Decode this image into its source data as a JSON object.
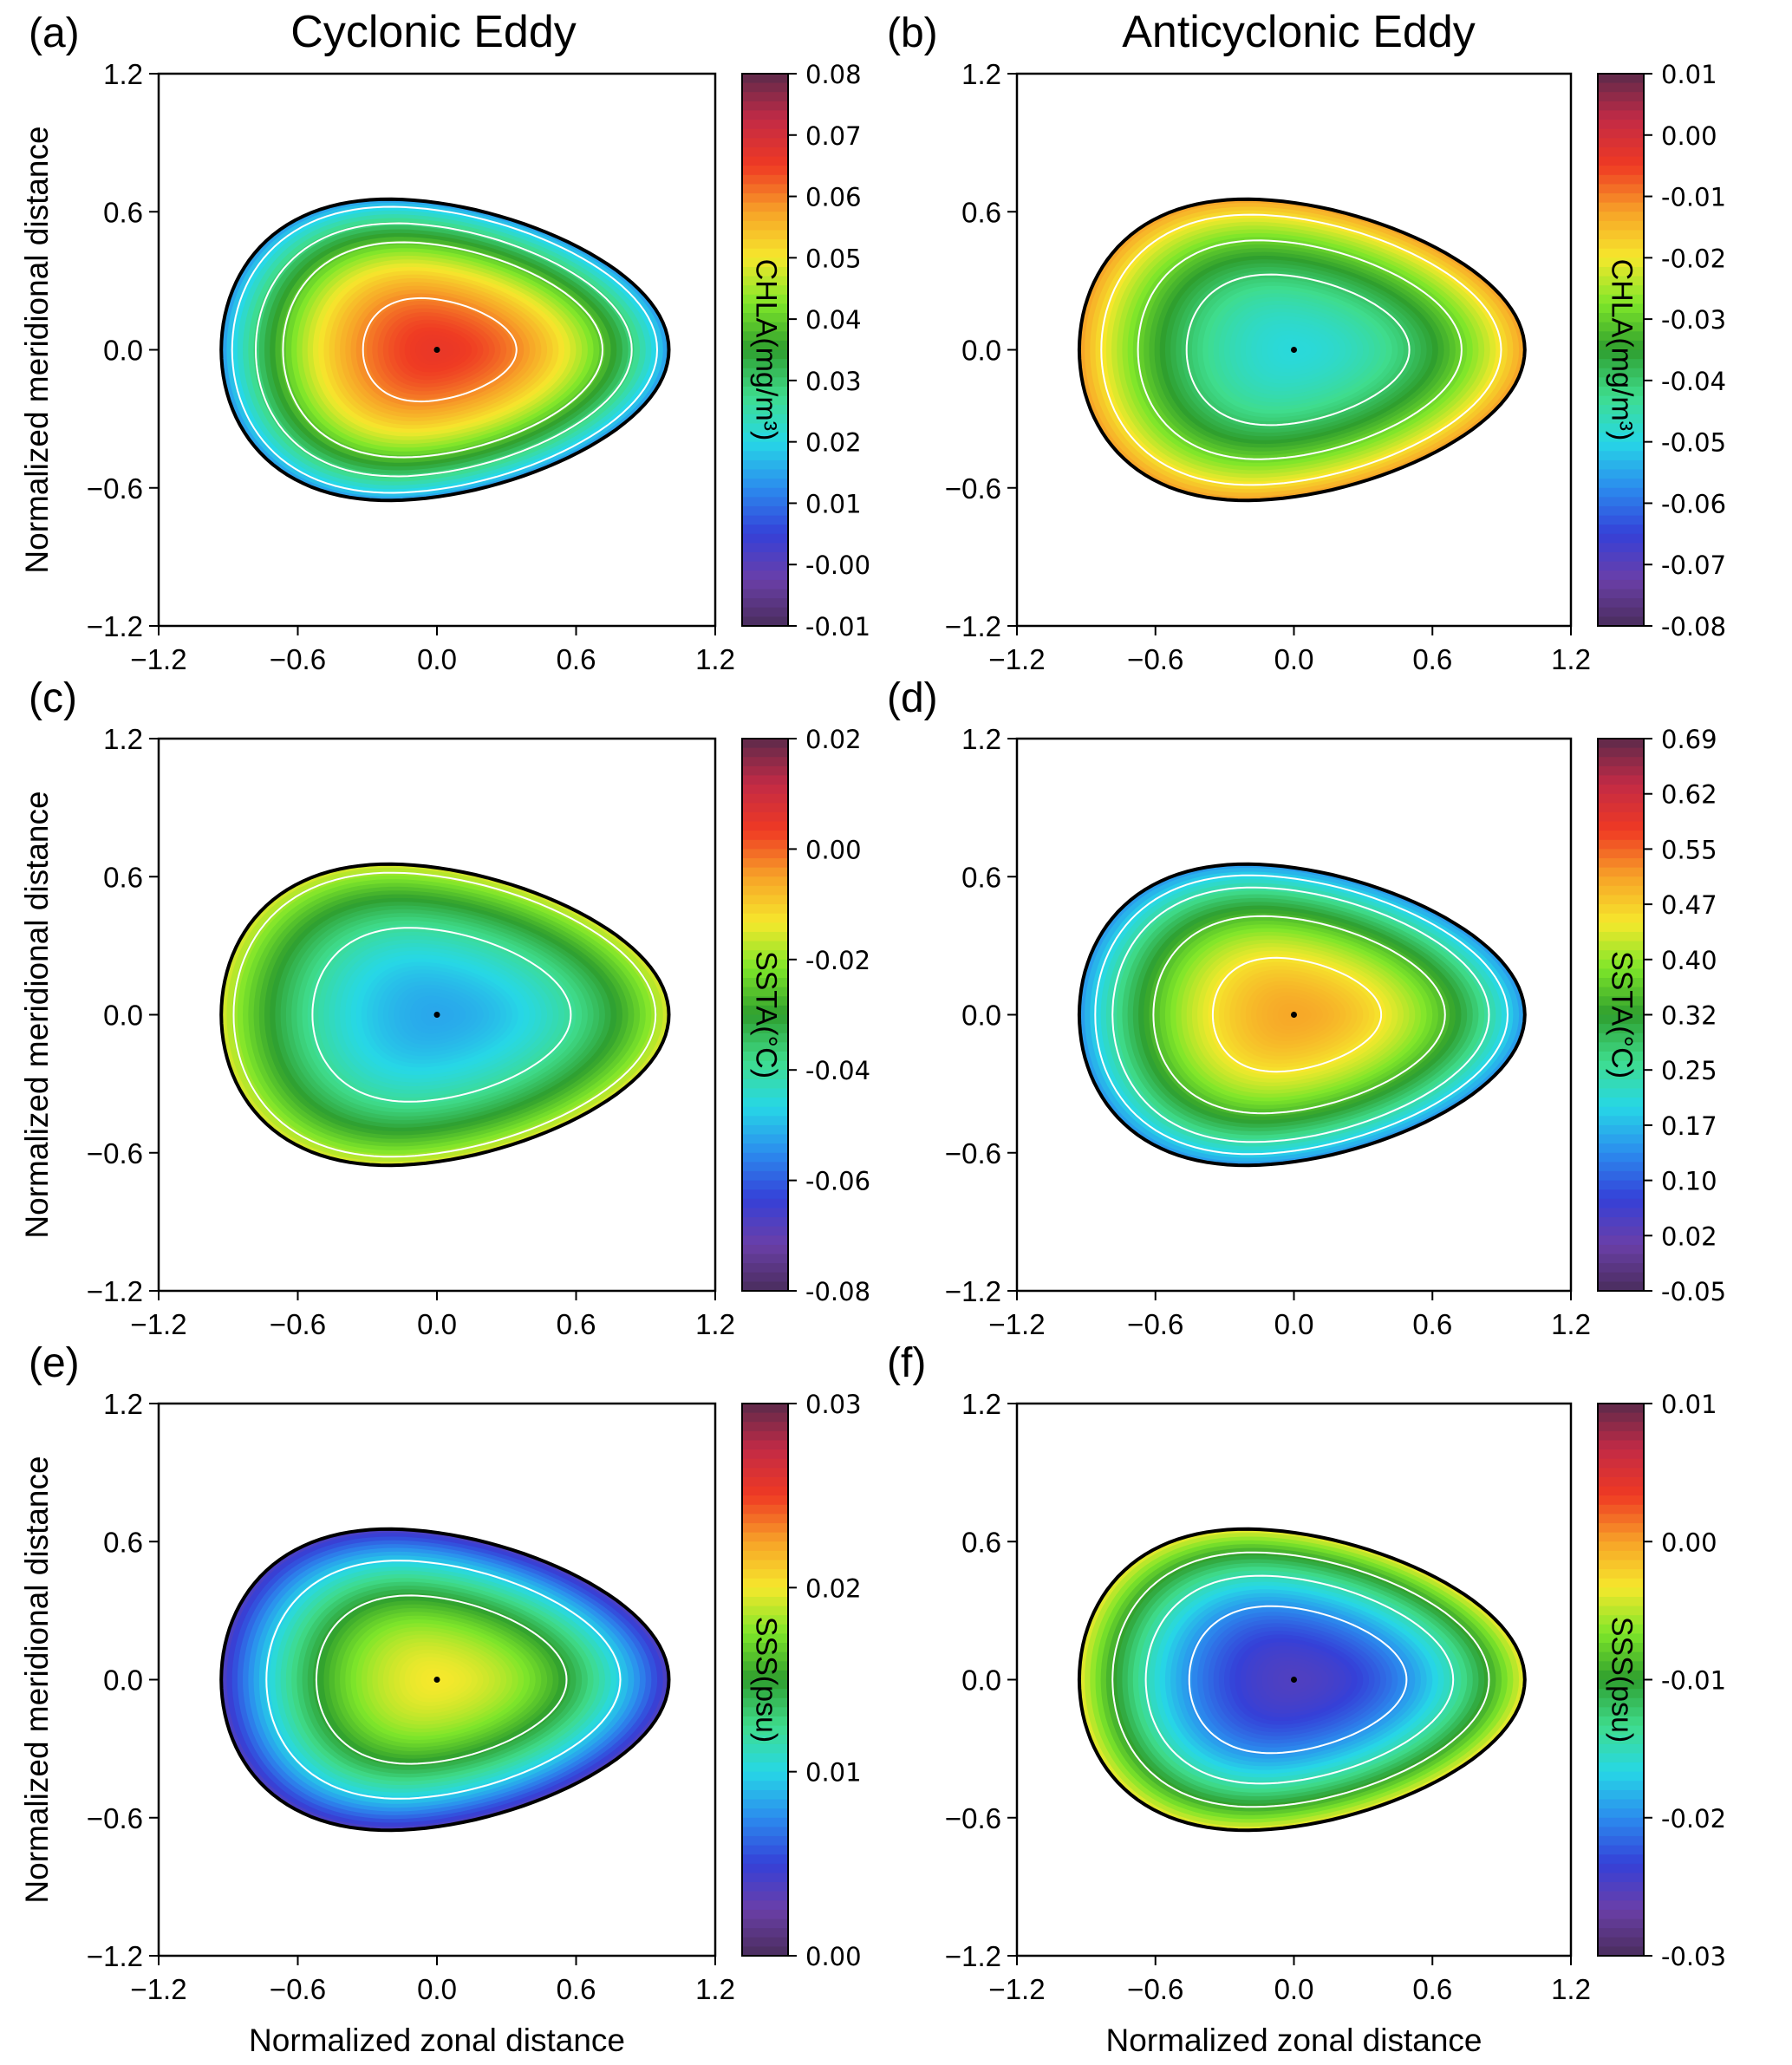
{
  "column_titles": [
    "Cyclonic Eddy",
    "Anticyclonic Eddy"
  ],
  "colors": {
    "colormap": [
      "#4a2d5c",
      "#6a3fa8",
      "#3540d8",
      "#2b8cee",
      "#27d8e6",
      "#3fdc8c",
      "#2e9e2e",
      "#7ee62a",
      "#f6e82c",
      "#f7a228",
      "#ef3a23",
      "#c32a45",
      "#5c2a4a"
    ],
    "contour": "#ffffff",
    "boundary": "#000000"
  },
  "chart_data": [
    {
      "type": "heatmap",
      "panel_label": "(a)",
      "column": "Cyclonic Eddy",
      "xlabel": "",
      "ylabel": "Normalized meridional distance",
      "colorbar_label": "CHLA(mg/m³)",
      "x_ticks": [
        "−1.2",
        "−0.6",
        "0.0",
        "0.6",
        "1.2"
      ],
      "y_ticks": [
        "1.2",
        "0.6",
        "0.0",
        "−0.6",
        "−1.2"
      ],
      "xlim": [
        -1.2,
        1.2
      ],
      "ylim": [
        -1.2,
        1.2
      ],
      "colorbar_ticks": [
        "0.08",
        "0.07",
        "0.06",
        "0.05",
        "0.04",
        "0.03",
        "0.02",
        "0.01",
        "-0.00",
        "-0.01"
      ],
      "colorbar_range": [
        -0.01,
        0.08
      ],
      "center_value": 0.066,
      "edge_value": 0.015,
      "contour_levels": [
        0.06,
        0.04,
        0.03,
        0.02
      ],
      "eddy_center": [
        0.0,
        0.0
      ]
    },
    {
      "type": "heatmap",
      "panel_label": "(b)",
      "column": "Anticyclonic Eddy",
      "xlabel": "",
      "ylabel": "",
      "colorbar_label": "CHLA(mg/m³)",
      "x_ticks": [
        "−1.2",
        "−0.6",
        "0.0",
        "0.6",
        "1.2"
      ],
      "y_ticks": [
        "1.2",
        "0.6",
        "0.0",
        "−0.6",
        "−1.2"
      ],
      "xlim": [
        -1.2,
        1.2
      ],
      "ylim": [
        -1.2,
        1.2
      ],
      "colorbar_ticks": [
        "0.01",
        "0.00",
        "-0.01",
        "-0.02",
        "-0.03",
        "-0.04",
        "-0.05",
        "-0.06",
        "-0.07",
        "-0.08"
      ],
      "colorbar_range": [
        -0.08,
        0.01
      ],
      "center_value": -0.049,
      "edge_value": -0.013,
      "contour_levels": [
        -0.02,
        -0.03,
        -0.04
      ],
      "eddy_center": [
        0.0,
        0.0
      ]
    },
    {
      "type": "heatmap",
      "panel_label": "(c)",
      "column": "Cyclonic Eddy",
      "xlabel": "",
      "ylabel": "Normalized meridional distance",
      "colorbar_label": "SSTA(°C)",
      "x_ticks": [
        "−1.2",
        "−0.6",
        "0.0",
        "0.6",
        "1.2"
      ],
      "y_ticks": [
        "1.2",
        "0.6",
        "0.0",
        "−0.6",
        "−1.2"
      ],
      "xlim": [
        -1.2,
        1.2
      ],
      "ylim": [
        -1.2,
        1.2
      ],
      "colorbar_ticks": [
        "0.02",
        "0.00",
        "-0.02",
        "-0.04",
        "-0.06",
        "-0.08"
      ],
      "colorbar_range": [
        -0.08,
        0.02
      ],
      "center_value": -0.052,
      "edge_value": -0.016,
      "contour_levels": [
        -0.02,
        -0.04
      ],
      "eddy_center": [
        0.0,
        0.0
      ]
    },
    {
      "type": "heatmap",
      "panel_label": "(d)",
      "column": "Anticyclonic Eddy",
      "xlabel": "",
      "ylabel": "",
      "colorbar_label": "SSTA(°C)",
      "x_ticks": [
        "−1.2",
        "−0.6",
        "0.0",
        "0.6",
        "1.2"
      ],
      "y_ticks": [
        "1.2",
        "0.6",
        "0.0",
        "−0.6",
        "−1.2"
      ],
      "xlim": [
        -1.2,
        1.2
      ],
      "ylim": [
        -1.2,
        1.2
      ],
      "colorbar_ticks": [
        "0.69",
        "0.62",
        "0.55",
        "0.47",
        "0.40",
        "0.32",
        "0.25",
        "0.17",
        "0.10",
        "0.02",
        "-0.05"
      ],
      "colorbar_range": [
        -0.05,
        0.69
      ],
      "center_value": 0.5,
      "edge_value": 0.15,
      "contour_levels": [
        0.45,
        0.35,
        0.25,
        0.2
      ],
      "eddy_center": [
        0.0,
        0.0
      ]
    },
    {
      "type": "heatmap",
      "panel_label": "(e)",
      "column": "Cyclonic Eddy",
      "xlabel": "Normalized zonal distance",
      "ylabel": "Normalized meridional distance",
      "colorbar_label": "SSS(psu)",
      "x_ticks": [
        "−1.2",
        "−0.6",
        "0.0",
        "0.6",
        "1.2"
      ],
      "y_ticks": [
        "1.2",
        "0.6",
        "0.0",
        "−0.6",
        "−1.2"
      ],
      "xlim": [
        -1.2,
        1.2
      ],
      "ylim": [
        -1.2,
        1.2
      ],
      "colorbar_ticks": [
        "0.03",
        "0.02",
        "0.01",
        "0.00"
      ],
      "colorbar_range": [
        0.0,
        0.03
      ],
      "center_value": 0.02,
      "edge_value": 0.004,
      "contour_levels": [
        0.015,
        0.01
      ],
      "eddy_center": [
        0.0,
        0.0
      ]
    },
    {
      "type": "heatmap",
      "panel_label": "(f)",
      "column": "Anticyclonic Eddy",
      "xlabel": "Normalized zonal distance",
      "ylabel": "",
      "colorbar_label": "SSS(psu)",
      "x_ticks": [
        "−1.2",
        "−0.6",
        "0.0",
        "0.6",
        "1.2"
      ],
      "y_ticks": [
        "1.2",
        "0.6",
        "0.0",
        "−0.6",
        "−1.2"
      ],
      "xlim": [
        -1.2,
        1.2
      ],
      "ylim": [
        -1.2,
        1.2
      ],
      "colorbar_ticks": [
        "0.01",
        "0.00",
        "-0.01",
        "-0.02",
        "-0.03"
      ],
      "colorbar_range": [
        -0.03,
        0.01
      ],
      "center_value": -0.025,
      "edge_value": -0.004,
      "contour_levels": [
        -0.01,
        -0.015,
        -0.02
      ],
      "eddy_center": [
        0.0,
        0.0
      ]
    }
  ]
}
